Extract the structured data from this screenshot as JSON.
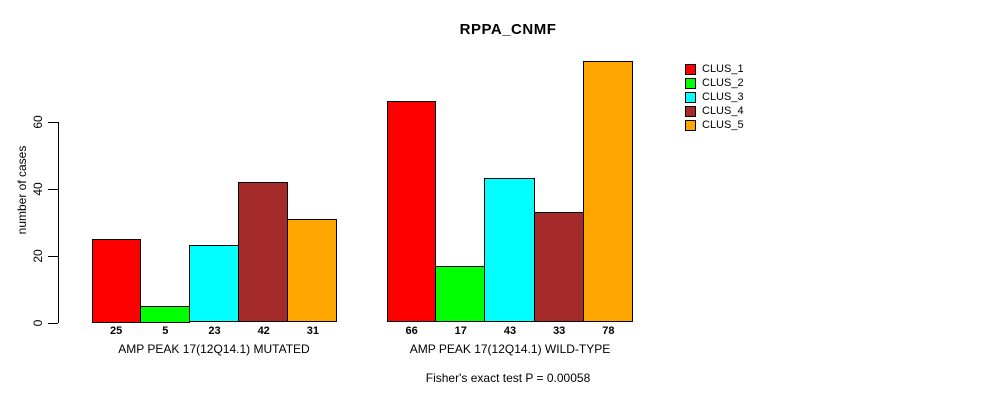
{
  "chart_data": {
    "type": "bar",
    "title": "RPPA_CNMF",
    "xlabel": "",
    "ylabel": "number of cases",
    "ylim": [
      0,
      79
    ],
    "yticks": [
      0,
      20,
      40,
      60
    ],
    "grid": false,
    "legend_position": "right-inside",
    "categories": [
      "AMP PEAK 17(12Q14.1) MUTATED",
      "AMP PEAK 17(12Q14.1) WILD-TYPE"
    ],
    "series": [
      {
        "name": "CLUS_1",
        "color": "#FF0000",
        "values": [
          25,
          66
        ]
      },
      {
        "name": "CLUS_2",
        "color": "#00FF00",
        "values": [
          5,
          17
        ]
      },
      {
        "name": "CLUS_3",
        "color": "#00FFFF",
        "values": [
          23,
          43
        ]
      },
      {
        "name": "CLUS_4",
        "color": "#A52A2A",
        "values": [
          42,
          33
        ]
      },
      {
        "name": "CLUS_5",
        "color": "#FFA500",
        "values": [
          31,
          78
        ]
      }
    ],
    "bar_value_labels": true,
    "annotation": "Fisher's exact test P = 0.00058"
  }
}
